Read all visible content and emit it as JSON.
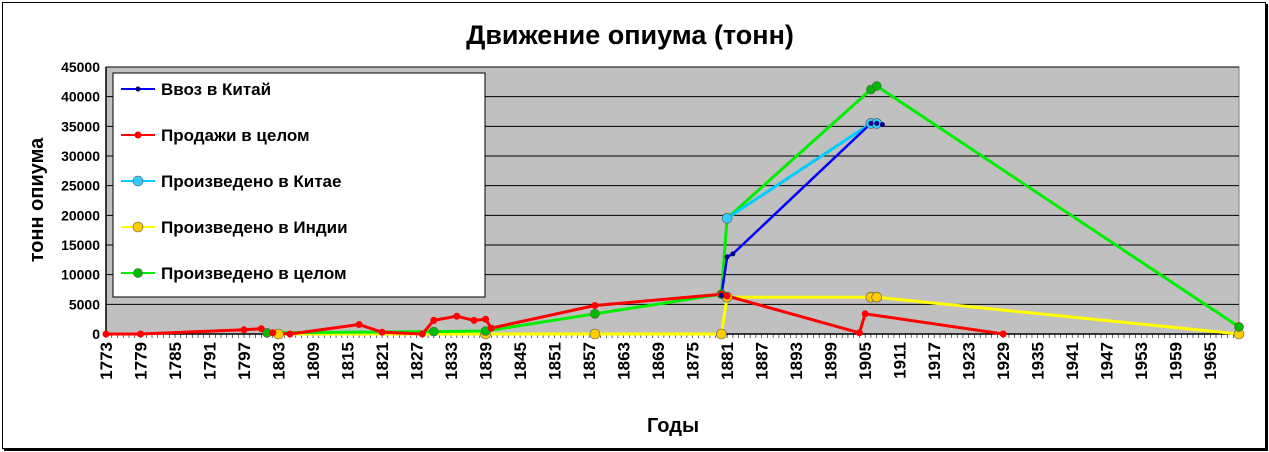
{
  "chart_data": {
    "type": "line",
    "title": "Движение опиума (тонн)",
    "xlabel": "Годы",
    "ylabel": "тонн опиума",
    "ylim": [
      0,
      45000
    ],
    "yticks": [
      0,
      5000,
      10000,
      15000,
      20000,
      25000,
      30000,
      35000,
      40000,
      45000
    ],
    "xticks": [
      1773,
      1779,
      1785,
      1791,
      1797,
      1803,
      1809,
      1815,
      1821,
      1827,
      1833,
      1839,
      1845,
      1851,
      1857,
      1863,
      1869,
      1875,
      1881,
      1887,
      1893,
      1899,
      1905,
      1911,
      1917,
      1923,
      1929,
      1935,
      1941,
      1947,
      1953,
      1959,
      1965
    ],
    "xlim": [
      1773,
      1970
    ],
    "grid": true,
    "legend_position": "top-left",
    "series": [
      {
        "name": "Ввоз в Китай",
        "color": "#0000ff",
        "marker_color": "#000080",
        "points": [
          [
            1880,
            6500
          ],
          [
            1881,
            13000
          ],
          [
            1882,
            13500
          ],
          [
            1906,
            35500
          ],
          [
            1907,
            35500
          ],
          [
            1908,
            35300
          ]
        ]
      },
      {
        "name": "Продажи в целом",
        "color": "#ff0000",
        "marker_color": "#ff0000",
        "points": [
          [
            1773,
            0
          ],
          [
            1779,
            0
          ],
          [
            1797,
            700
          ],
          [
            1800,
            900
          ],
          [
            1802,
            200
          ],
          [
            1805,
            0
          ],
          [
            1817,
            1600
          ],
          [
            1821,
            300
          ],
          [
            1828,
            0
          ],
          [
            1830,
            2300
          ],
          [
            1834,
            3000
          ],
          [
            1837,
            2300
          ],
          [
            1839,
            2500
          ],
          [
            1840,
            1000
          ],
          [
            1858,
            4800
          ],
          [
            1880,
            6700
          ],
          [
            1881,
            6400
          ],
          [
            1904,
            200
          ],
          [
            1905,
            3400
          ],
          [
            1929,
            0
          ]
        ]
      },
      {
        "name": "Произведено в Китае",
        "color": "#00ccff",
        "marker_color": "#33ccff",
        "points": [
          [
            1881,
            19500
          ],
          [
            1906,
            35500
          ],
          [
            1907,
            35500
          ]
        ]
      },
      {
        "name": "Произведено в Индии",
        "color": "#ffff00",
        "marker_color": "#ffcc00",
        "points": [
          [
            1803,
            0
          ],
          [
            1839,
            0
          ],
          [
            1858,
            0
          ],
          [
            1880,
            0
          ],
          [
            1881,
            6200
          ],
          [
            1906,
            6200
          ],
          [
            1907,
            6200
          ],
          [
            1970,
            0
          ]
        ]
      },
      {
        "name": "Произведено в целом",
        "color": "#00ee00",
        "marker_color": "#00bb00",
        "points": [
          [
            1801,
            200
          ],
          [
            1830,
            400
          ],
          [
            1839,
            500
          ],
          [
            1858,
            3400
          ],
          [
            1880,
            6700
          ],
          [
            1881,
            19500
          ],
          [
            1906,
            41200
          ],
          [
            1907,
            41800
          ],
          [
            1970,
            1200
          ]
        ]
      }
    ]
  }
}
